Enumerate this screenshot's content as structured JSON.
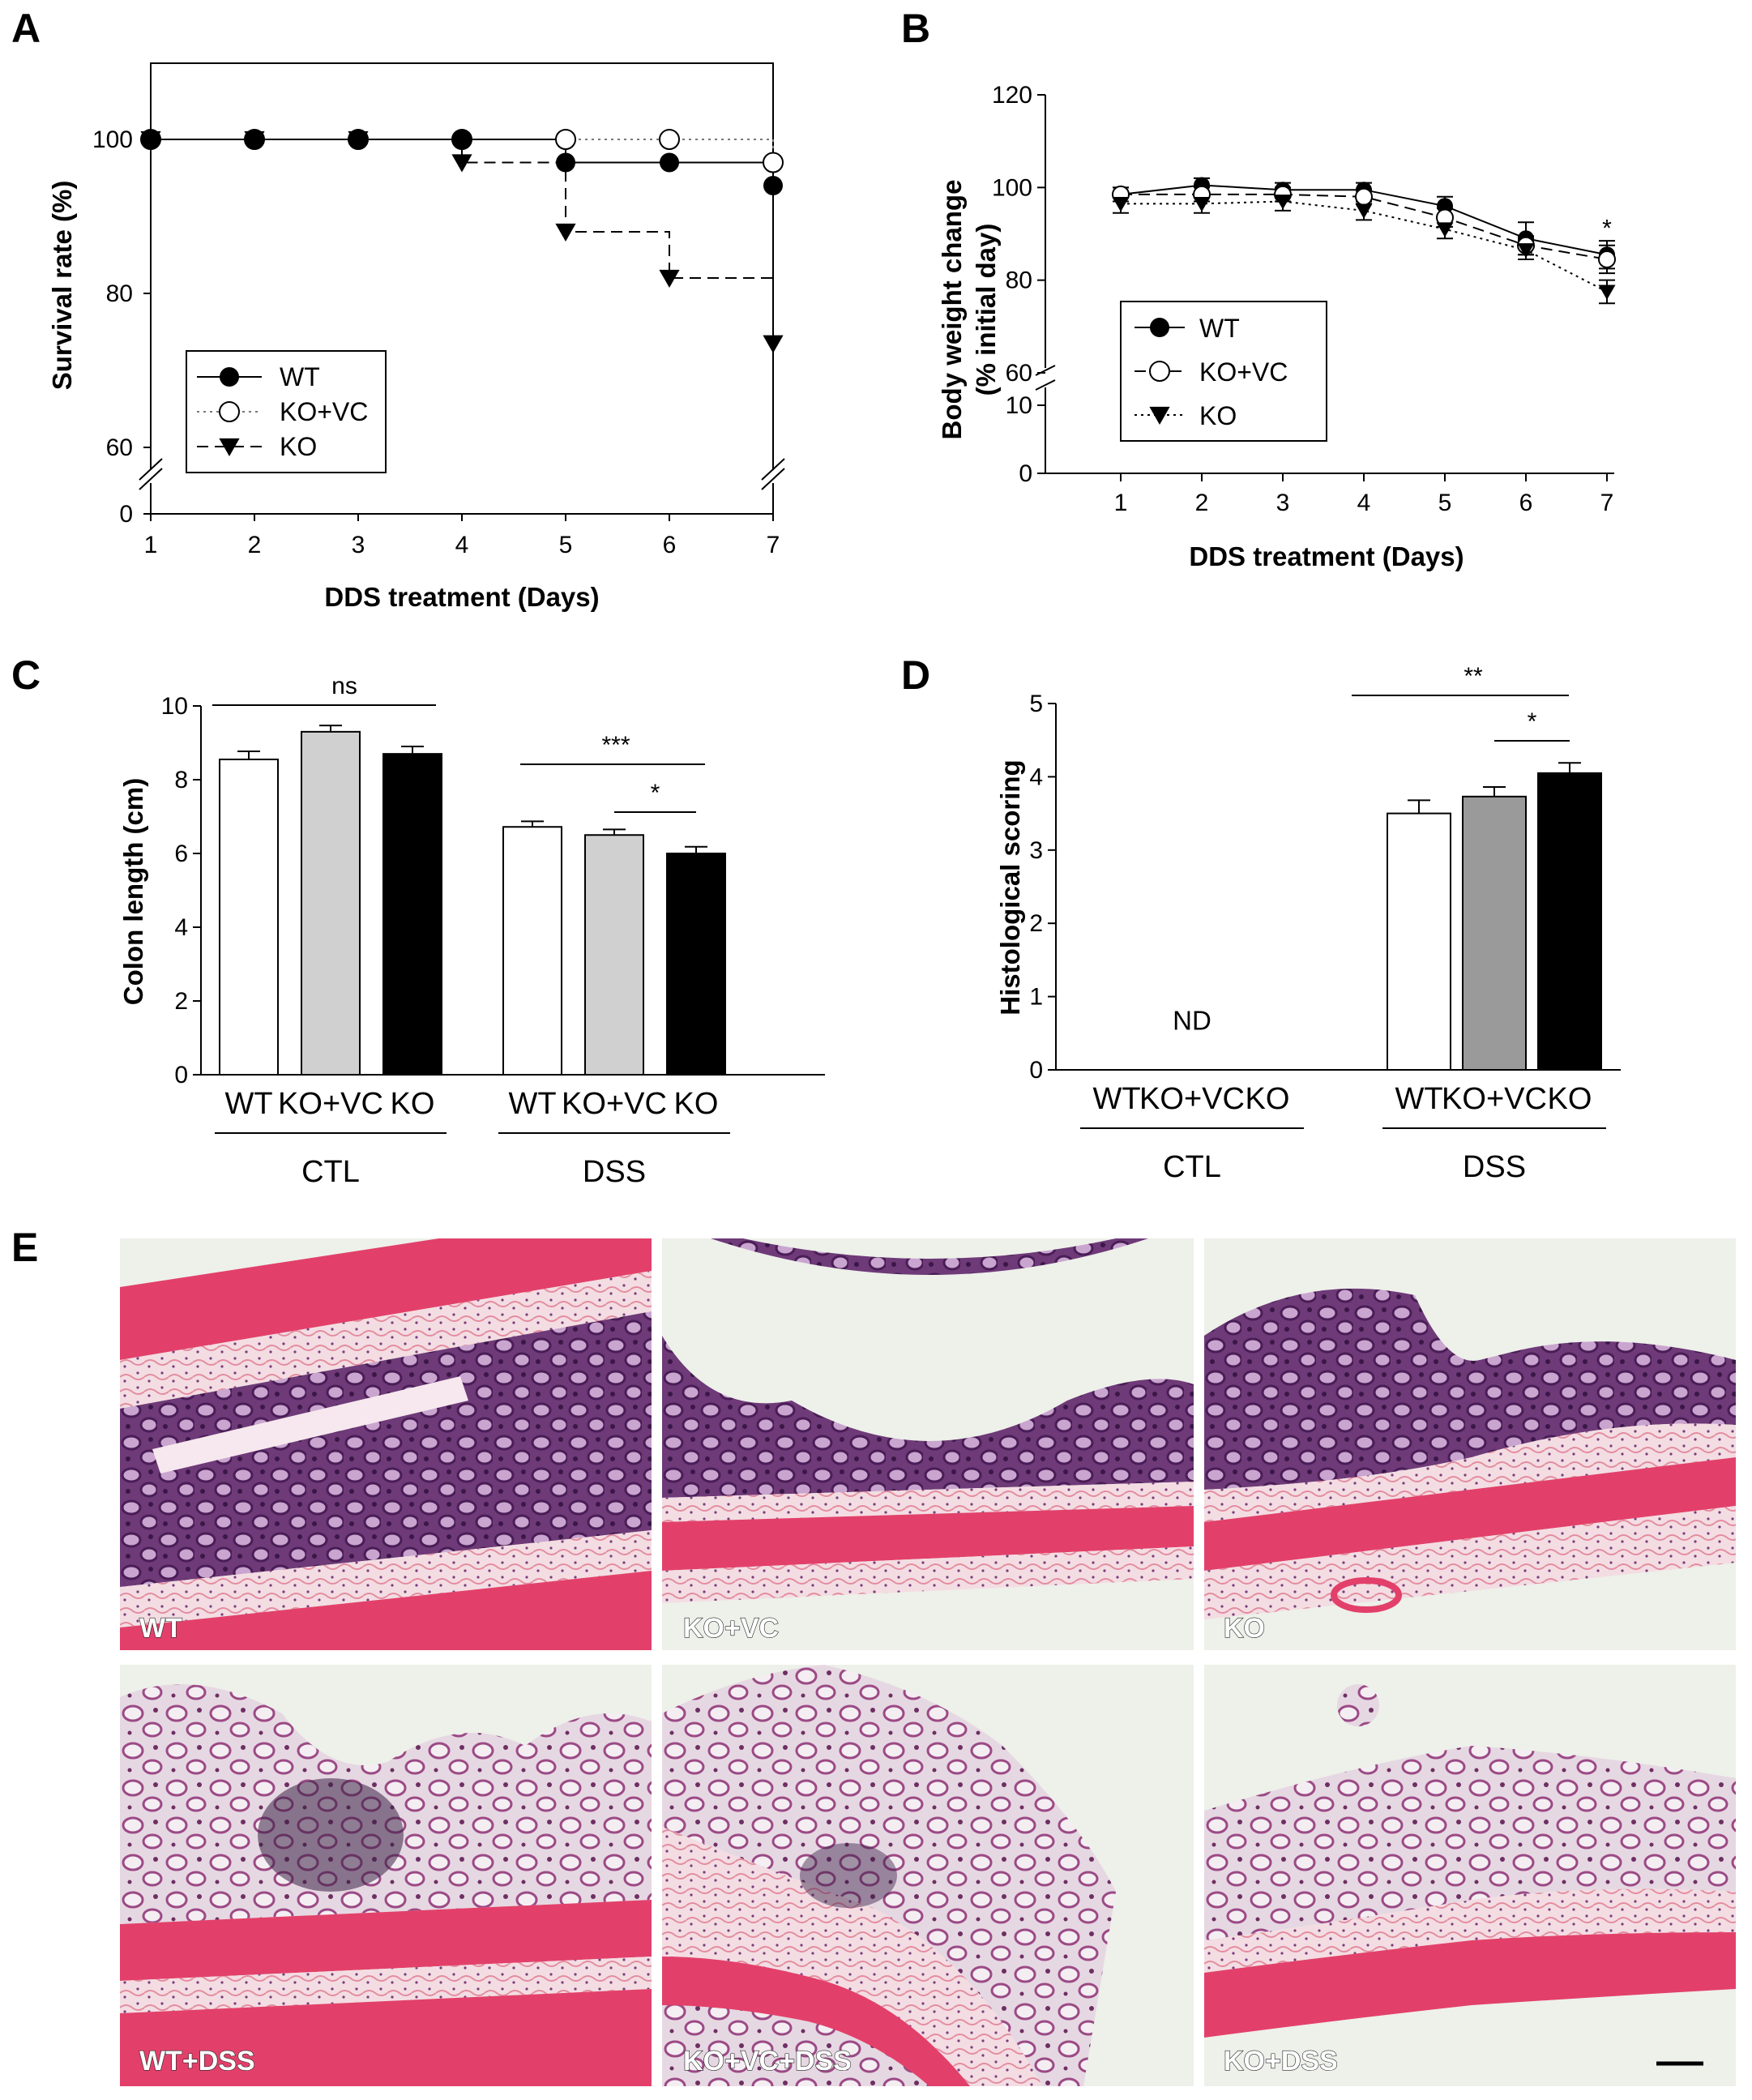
{
  "figure_labels": {
    "a": "A",
    "b": "B",
    "c": "C",
    "d": "D",
    "e": "E"
  },
  "chart_data": [
    {
      "panel": "A",
      "type": "line",
      "xlabel": "DDS treatment (Days)",
      "ylabel": "Survival rate (%)",
      "x": [
        1,
        2,
        3,
        4,
        5,
        6,
        7
      ],
      "x_ticks": [
        "1",
        "2",
        "3",
        "4",
        "5",
        "6",
        "7"
      ],
      "y_ticks": [
        "0",
        "60",
        "80",
        "100"
      ],
      "ylim": [
        60,
        110
      ],
      "axis_break": "60-0",
      "step": true,
      "series": [
        {
          "name": "WT",
          "marker": "filled-circle",
          "line": "solid",
          "values": [
            100,
            100,
            100,
            100,
            97,
            97,
            94
          ]
        },
        {
          "name": "KO+VC",
          "marker": "open-circle",
          "line": "dotted",
          "values": [
            100,
            100,
            100,
            100,
            100,
            100,
            97
          ]
        },
        {
          "name": "KO",
          "marker": "filled-triangle-down",
          "line": "dashed",
          "values": [
            100,
            100,
            100,
            97,
            88,
            82,
            73.5
          ]
        }
      ],
      "legend": "bottom-left"
    },
    {
      "panel": "B",
      "type": "line",
      "xlabel": "DDS treatment (Days)",
      "ylabel": "Body weight change",
      "ylabel2": "(% initial day)",
      "x": [
        1,
        2,
        3,
        4,
        5,
        6,
        7
      ],
      "x_ticks": [
        "1",
        "2",
        "3",
        "4",
        "5",
        "6",
        "7"
      ],
      "y_ticks": [
        "0",
        "10",
        "60",
        "80",
        "100",
        "120"
      ],
      "ylim": [
        60,
        120
      ],
      "axis_break": "60-10",
      "series": [
        {
          "name": "WT",
          "marker": "filled-circle",
          "line": "solid",
          "values": [
            98.5,
            100.5,
            99.5,
            99.5,
            96,
            89,
            85.5
          ],
          "errors": [
            1.5,
            1.5,
            1.5,
            1.5,
            2,
            3.5,
            3
          ]
        },
        {
          "name": "KO+VC",
          "marker": "open-circle",
          "line": "dashed",
          "values": [
            98.5,
            98.5,
            98.5,
            98,
            93.5,
            87.5,
            84.5
          ],
          "errors": [
            1.5,
            1.5,
            1.5,
            1.5,
            2,
            2,
            3
          ]
        },
        {
          "name": "KO",
          "marker": "filled-triangle-down",
          "line": "dotted",
          "values": [
            96.5,
            96.5,
            97,
            95,
            91,
            86.5,
            77.5
          ],
          "errors": [
            2,
            2,
            2,
            2,
            2,
            2,
            2.5
          ]
        }
      ],
      "annotations": [
        {
          "x": 7,
          "text": "*"
        }
      ],
      "legend": "bottom-left"
    },
    {
      "panel": "C",
      "type": "bar",
      "ylabel": "Colon length (cm)",
      "ylim": [
        0,
        10
      ],
      "y_ticks": [
        "0",
        "2",
        "4",
        "6",
        "8",
        "10"
      ],
      "categories": [
        "WT",
        "KO+VC",
        "KO",
        "WT",
        "KO+VC",
        "KO"
      ],
      "groups": [
        "CTL",
        "DSS"
      ],
      "values": [
        8.55,
        9.3,
        8.7,
        6.72,
        6.5,
        6.0
      ],
      "errors": [
        0.22,
        0.17,
        0.2,
        0.15,
        0.15,
        0.18
      ],
      "fills": [
        "#ffffff",
        "#d0d0d0",
        "#000000",
        "#ffffff",
        "#d0d0d0",
        "#000000"
      ],
      "significance": [
        {
          "from": 0,
          "to": 2,
          "text": "ns"
        },
        {
          "from": 3,
          "to": 5,
          "text": "***"
        },
        {
          "from": 4,
          "to": 5,
          "text": "*"
        }
      ]
    },
    {
      "panel": "D",
      "type": "bar",
      "ylabel": "Histological scoring",
      "ylim": [
        0,
        5
      ],
      "y_ticks": [
        "0",
        "1",
        "2",
        "3",
        "4",
        "5"
      ],
      "categories": [
        "WT",
        "KO+VC",
        "KO",
        "WT",
        "KO+VC",
        "KO"
      ],
      "groups": [
        "CTL",
        "DSS"
      ],
      "values": [
        0,
        0,
        0,
        3.5,
        3.73,
        4.05
      ],
      "errors": [
        0,
        0,
        0,
        0.18,
        0.13,
        0.14
      ],
      "fills": [
        "#ffffff",
        "#d0d0d0",
        "#000000",
        "#ffffff",
        "#9a9a9a",
        "#000000"
      ],
      "nd_text": "ND",
      "significance": [
        {
          "from": 3,
          "to": 5,
          "text": "**"
        },
        {
          "from": 4,
          "to": 5,
          "text": "*"
        }
      ]
    }
  ],
  "histology": {
    "label": "E",
    "panels": [
      "WT",
      "KO+VC",
      "KO",
      "WT+DSS",
      "KO+VC+DSS",
      "KO+DSS"
    ],
    "colors": {
      "stain_pink": "#e2406a",
      "stain_purple": "#5a2c6e",
      "background": "#eef0ea"
    }
  }
}
